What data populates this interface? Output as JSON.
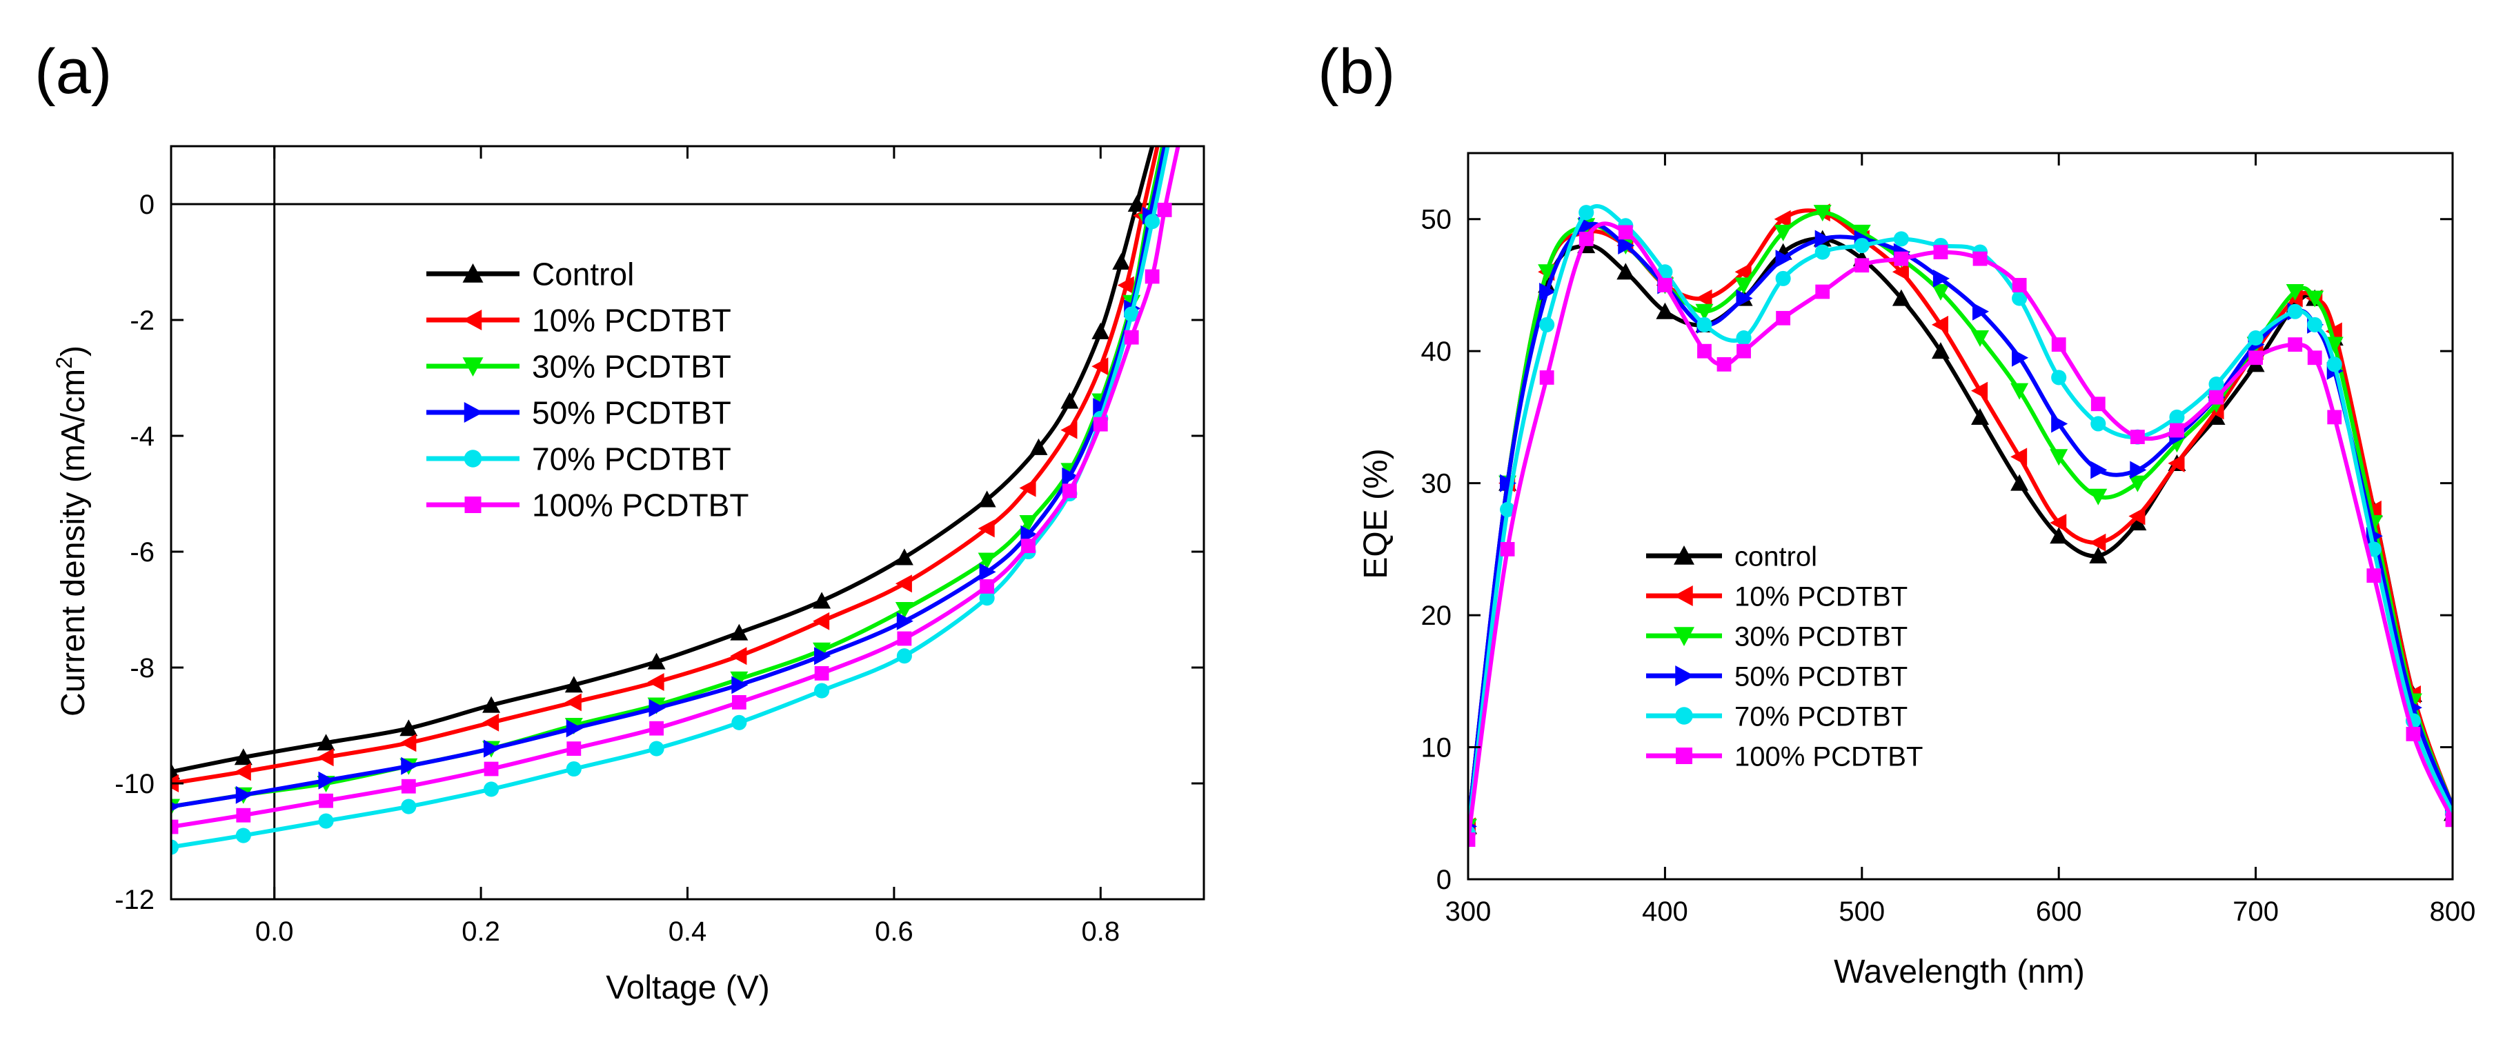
{
  "panels": [
    {
      "label": "(a)",
      "chart_data": {
        "type": "line",
        "xlabel": "Voltage (V)",
        "ylabel_main": "Current density (mA/cm",
        "ylabel_sup": "2",
        "ylabel_tail": ")",
        "xlim": [
          -0.1,
          0.9
        ],
        "ylim": [
          -12,
          1
        ],
        "xticks": [
          0.0,
          0.2,
          0.4,
          0.6,
          0.8
        ],
        "xtick_labels": [
          "0.0",
          "0.2",
          "0.4",
          "0.6",
          "0.8"
        ],
        "yticks": [
          0,
          -2,
          -4,
          -6,
          -8,
          -10,
          -12
        ],
        "ytick_labels": [
          "0",
          "-2",
          "-4",
          "-6",
          "-8",
          "-10",
          "-12"
        ],
        "reference_lines": {
          "x": 0,
          "y": 0
        },
        "legend_position": "center-left",
        "series": [
          {
            "name": "Control",
            "color": "#000000",
            "marker": "triangle-up",
            "x": [
              -0.1,
              -0.03,
              0.05,
              0.13,
              0.21,
              0.29,
              0.37,
              0.45,
              0.53,
              0.61,
              0.69,
              0.74,
              0.77,
              0.8,
              0.82,
              0.835,
              0.85
            ],
            "y": [
              -9.8,
              -9.55,
              -9.3,
              -9.05,
              -8.65,
              -8.3,
              -7.9,
              -7.4,
              -6.85,
              -6.1,
              -5.1,
              -4.2,
              -3.4,
              -2.2,
              -1.0,
              0.0,
              1.0
            ]
          },
          {
            "name": "10% PCDTBT",
            "color": "#ff0000",
            "marker": "triangle-left",
            "x": [
              -0.1,
              -0.03,
              0.05,
              0.13,
              0.21,
              0.29,
              0.37,
              0.45,
              0.53,
              0.61,
              0.69,
              0.73,
              0.77,
              0.8,
              0.825,
              0.84,
              0.855
            ],
            "y": [
              -10.0,
              -9.8,
              -9.55,
              -9.3,
              -8.95,
              -8.6,
              -8.25,
              -7.8,
              -7.2,
              -6.55,
              -5.6,
              -4.9,
              -3.9,
              -2.8,
              -1.4,
              -0.2,
              1.0
            ]
          },
          {
            "name": "30% PCDTBT",
            "color": "#00ee00",
            "marker": "triangle-down",
            "x": [
              -0.1,
              -0.03,
              0.05,
              0.13,
              0.21,
              0.29,
              0.37,
              0.45,
              0.53,
              0.61,
              0.69,
              0.73,
              0.77,
              0.8,
              0.83,
              0.845,
              0.86
            ],
            "y": [
              -10.4,
              -10.2,
              -10.0,
              -9.7,
              -9.4,
              -9.0,
              -8.65,
              -8.2,
              -7.7,
              -7.0,
              -6.15,
              -5.5,
              -4.6,
              -3.4,
              -1.7,
              -0.3,
              1.0
            ]
          },
          {
            "name": "50% PCDTBT",
            "color": "#0000ff",
            "marker": "triangle-right",
            "x": [
              -0.1,
              -0.03,
              0.05,
              0.13,
              0.21,
              0.29,
              0.37,
              0.45,
              0.53,
              0.61,
              0.69,
              0.73,
              0.77,
              0.8,
              0.83,
              0.848,
              0.862
            ],
            "y": [
              -10.4,
              -10.2,
              -9.95,
              -9.7,
              -9.4,
              -9.05,
              -8.7,
              -8.3,
              -7.8,
              -7.2,
              -6.35,
              -5.7,
              -4.7,
              -3.5,
              -1.8,
              -0.2,
              1.0
            ]
          },
          {
            "name": "70% PCDTBT",
            "color": "#00e5ee",
            "marker": "circle",
            "x": [
              -0.1,
              -0.03,
              0.05,
              0.13,
              0.21,
              0.29,
              0.37,
              0.45,
              0.53,
              0.61,
              0.69,
              0.73,
              0.77,
              0.8,
              0.83,
              0.85,
              0.865
            ],
            "y": [
              -11.1,
              -10.9,
              -10.65,
              -10.4,
              -10.1,
              -9.75,
              -9.4,
              -8.95,
              -8.4,
              -7.8,
              -6.8,
              -6.0,
              -5.0,
              -3.7,
              -1.9,
              -0.3,
              1.0
            ]
          },
          {
            "name": "100% PCDTBT",
            "color": "#ff00ff",
            "marker": "square",
            "x": [
              -0.1,
              -0.03,
              0.05,
              0.13,
              0.21,
              0.29,
              0.37,
              0.45,
              0.53,
              0.61,
              0.69,
              0.73,
              0.77,
              0.8,
              0.83,
              0.85,
              0.862,
              0.875
            ],
            "y": [
              -10.75,
              -10.55,
              -10.3,
              -10.05,
              -9.75,
              -9.4,
              -9.05,
              -8.6,
              -8.1,
              -7.5,
              -6.6,
              -5.9,
              -4.95,
              -3.8,
              -2.3,
              -1.25,
              -0.1,
              1.0
            ]
          }
        ]
      }
    },
    {
      "label": "(b)",
      "chart_data": {
        "type": "line",
        "xlabel": "Wavelength (nm)",
        "ylabel": "EQE (%)",
        "xlim": [
          300,
          800
        ],
        "ylim": [
          0,
          55
        ],
        "xticks": [
          300,
          400,
          500,
          600,
          700,
          800
        ],
        "xtick_labels": [
          "300",
          "400",
          "500",
          "600",
          "700",
          "800"
        ],
        "yticks": [
          0,
          10,
          20,
          30,
          40,
          50
        ],
        "ytick_labels": [
          "0",
          "10",
          "20",
          "30",
          "40",
          "50"
        ],
        "legend_position": "lower-left",
        "series": [
          {
            "name": "control",
            "color": "#000000",
            "marker": "triangle-up",
            "x": [
              300,
              320,
              340,
              360,
              380,
              400,
              420,
              440,
              460,
              480,
              500,
              520,
              540,
              560,
              580,
              600,
              620,
              640,
              660,
              680,
              700,
              720,
              730,
              740,
              760,
              780,
              800
            ],
            "y": [
              4,
              30,
              45,
              48,
              46,
              43,
              42,
              44,
              47.5,
              48.5,
              47,
              44,
              40,
              35,
              30,
              26,
              24.5,
              27,
              31.5,
              35,
              39,
              43.5,
              44,
              41,
              28,
              14,
              5
            ]
          },
          {
            "name": "10% PCDTBT",
            "color": "#ff0000",
            "marker": "triangle-left",
            "x": [
              300,
              320,
              340,
              360,
              380,
              400,
              420,
              440,
              460,
              480,
              500,
              520,
              540,
              560,
              580,
              600,
              620,
              640,
              660,
              680,
              700,
              720,
              730,
              740,
              760,
              780,
              800
            ],
            "y": [
              4,
              30,
              46,
              49,
              48,
              45,
              44,
              46,
              50,
              50.5,
              48.5,
              46,
              42,
              37,
              32,
              27,
              25.5,
              27.5,
              31.5,
              35.5,
              40,
              44,
              44,
              41.5,
              28,
              14,
              5.5
            ]
          },
          {
            "name": "30% PCDTBT",
            "color": "#00ee00",
            "marker": "triangle-down",
            "x": [
              300,
              320,
              340,
              360,
              380,
              400,
              420,
              440,
              460,
              480,
              500,
              520,
              540,
              560,
              580,
              600,
              620,
              640,
              660,
              680,
              700,
              720,
              730,
              740,
              760,
              780,
              800
            ],
            "y": [
              4,
              30,
              46,
              49.5,
              48,
              45,
              43,
              45,
              49,
              50.5,
              49,
              47,
              44.5,
              41,
              37,
              32,
              29,
              30,
              33,
              36,
              40.5,
              44.5,
              44,
              40.5,
              27,
              13.5,
              5.5
            ]
          },
          {
            "name": "50% PCDTBT",
            "color": "#0000ff",
            "marker": "triangle-right",
            "x": [
              300,
              320,
              340,
              360,
              380,
              400,
              420,
              440,
              460,
              480,
              500,
              520,
              540,
              560,
              580,
              600,
              620,
              640,
              660,
              680,
              700,
              720,
              730,
              740,
              760,
              780,
              800
            ],
            "y": [
              4,
              30,
              44.5,
              49.5,
              48,
              45,
              42,
              44,
              47,
              48.5,
              48.5,
              47.5,
              45.5,
              43,
              39.5,
              34.5,
              31,
              31,
              33.5,
              36.5,
              40.5,
              43,
              42,
              38.5,
              26,
              13,
              5.5
            ]
          },
          {
            "name": "70% PCDTBT",
            "color": "#00e5ee",
            "marker": "circle",
            "x": [
              300,
              320,
              340,
              360,
              380,
              400,
              420,
              440,
              460,
              480,
              500,
              520,
              540,
              560,
              580,
              600,
              620,
              640,
              660,
              680,
              700,
              720,
              730,
              740,
              760,
              780,
              800
            ],
            "y": [
              3.5,
              28,
              42,
              50.5,
              49.5,
              46,
              42,
              41,
              45.5,
              47.5,
              48,
              48.5,
              48,
              47.5,
              44,
              38,
              34.5,
              33.5,
              35,
              37.5,
              41,
              43,
              42,
              39,
              25,
              12,
              5
            ]
          },
          {
            "name": "100% PCDTBT",
            "color": "#ff00ff",
            "marker": "square",
            "x": [
              300,
              320,
              340,
              360,
              380,
              400,
              420,
              430,
              440,
              460,
              480,
              500,
              520,
              540,
              560,
              580,
              600,
              620,
              640,
              660,
              680,
              700,
              720,
              730,
              740,
              760,
              780,
              800
            ],
            "y": [
              3,
              25,
              38,
              48.5,
              49,
              45,
              40,
              39,
              40,
              42.5,
              44.5,
              46.5,
              47,
              47.5,
              47,
              45,
              40.5,
              36,
              33.5,
              34,
              36.5,
              39.5,
              40.5,
              39.5,
              35,
              23,
              11,
              4.5
            ]
          }
        ]
      }
    }
  ]
}
